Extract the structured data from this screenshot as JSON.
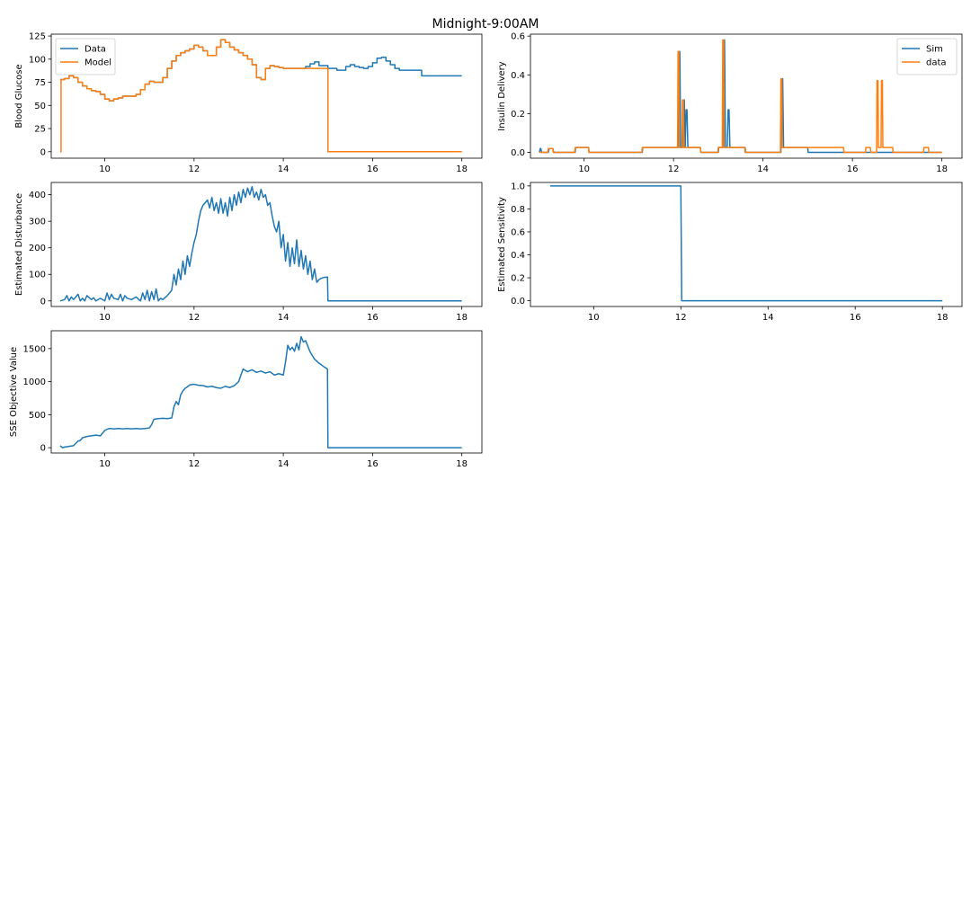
{
  "figure": {
    "title": "Midnight-9:00AM"
  },
  "chart_data": [
    {
      "type": "line",
      "ylabel": "Blood Glucose",
      "xlim": [
        8.8,
        18.45
      ],
      "ylim": [
        -7,
        127
      ],
      "xticks": [
        10,
        12,
        14,
        16,
        18
      ],
      "yticks": [
        0,
        25,
        50,
        75,
        100,
        125
      ],
      "legend": "top-left",
      "series": [
        {
          "name": "Data",
          "color": "#1f77b4",
          "step": true,
          "x": [
            9.0,
            9.1,
            9.2,
            9.3,
            9.4,
            9.5,
            9.6,
            9.7,
            9.8,
            9.9,
            10.0,
            10.1,
            10.2,
            10.3,
            10.4,
            10.5,
            10.6,
            10.7,
            10.8,
            10.9,
            11.0,
            11.1,
            11.2,
            11.3,
            11.4,
            11.5,
            11.6,
            11.7,
            11.8,
            11.9,
            12.0,
            12.1,
            12.2,
            12.3,
            12.4,
            12.5,
            12.6,
            12.7,
            12.8,
            12.9,
            13.0,
            13.1,
            13.2,
            13.3,
            13.4,
            13.5,
            13.6,
            13.7,
            13.8,
            13.9,
            14.0,
            14.1,
            14.2,
            14.3,
            14.4,
            14.5,
            14.6,
            14.7,
            14.8,
            15.0,
            15.2,
            15.4,
            15.5,
            15.6,
            15.7,
            15.8,
            15.9,
            16.0,
            16.1,
            16.2,
            16.3,
            16.4,
            16.5,
            16.6,
            16.7,
            16.8,
            16.9,
            17.0,
            17.1,
            17.2,
            17.3,
            17.5,
            17.7,
            17.75,
            18.0
          ],
          "y": [
            78,
            79,
            82,
            80,
            75,
            71,
            68,
            66,
            65,
            62,
            57,
            55,
            57,
            58,
            60,
            60,
            60,
            62,
            67,
            73,
            76,
            75,
            75,
            80,
            90,
            98,
            104,
            107,
            109,
            111,
            115,
            113,
            109,
            104,
            104,
            113,
            121,
            118,
            113,
            110,
            107,
            104,
            100,
            94,
            80,
            78,
            90,
            93,
            92,
            91,
            90,
            90,
            90,
            90,
            90,
            92,
            95,
            97,
            93,
            90,
            88,
            92,
            94,
            92,
            91,
            90,
            92,
            96,
            101,
            102,
            98,
            94,
            90,
            88,
            88,
            88,
            88,
            88,
            82,
            82,
            82,
            82,
            82,
            82,
            82
          ]
        },
        {
          "name": "Model",
          "color": "#ff7f0e",
          "step": true,
          "x": [
            9.0,
            9.02,
            9.1,
            9.2,
            9.3,
            9.4,
            9.5,
            9.6,
            9.7,
            9.8,
            9.9,
            10.0,
            10.1,
            10.2,
            10.3,
            10.4,
            10.5,
            10.6,
            10.7,
            10.8,
            10.9,
            11.0,
            11.1,
            11.2,
            11.3,
            11.4,
            11.5,
            11.6,
            11.7,
            11.8,
            11.9,
            12.0,
            12.1,
            12.2,
            12.3,
            12.4,
            12.5,
            12.6,
            12.7,
            12.8,
            12.9,
            13.0,
            13.1,
            13.2,
            13.3,
            13.4,
            13.5,
            13.6,
            13.7,
            13.8,
            13.9,
            14.0,
            14.1,
            14.2,
            14.3,
            14.4,
            14.5,
            14.6,
            14.7,
            14.8,
            14.99,
            15.0,
            18.0
          ],
          "y": [
            0,
            78,
            79,
            82,
            80,
            75,
            71,
            68,
            66,
            65,
            62,
            57,
            55,
            57,
            58,
            60,
            60,
            60,
            62,
            67,
            73,
            76,
            75,
            75,
            80,
            90,
            98,
            104,
            107,
            109,
            111,
            115,
            113,
            109,
            104,
            104,
            113,
            121,
            118,
            113,
            110,
            107,
            104,
            100,
            94,
            80,
            78,
            90,
            93,
            92,
            91,
            90,
            90,
            90,
            90,
            90,
            90,
            90,
            90,
            90,
            90,
            0,
            0
          ]
        }
      ]
    },
    {
      "type": "line",
      "ylabel": "Insulin Delivery",
      "xlim": [
        8.8,
        18.45
      ],
      "ylim": [
        -0.03,
        0.61
      ],
      "xticks": [
        10,
        12,
        14,
        16,
        18
      ],
      "yticks": [
        0.0,
        0.2,
        0.4,
        0.6
      ],
      "legend": "top-right",
      "series": [
        {
          "name": "Sim",
          "color": "#1f77b4",
          "x": [
            9.0,
            9.02,
            9.03,
            9.05,
            9.2,
            9.22,
            9.3,
            9.32,
            9.8,
            9.81,
            10.1,
            10.11,
            11.3,
            11.31,
            12.1,
            12.12,
            12.14,
            12.16,
            12.2,
            12.22,
            12.24,
            12.26,
            12.28,
            12.3,
            12.32,
            12.6,
            12.61,
            13.0,
            13.01,
            13.1,
            13.12,
            13.14,
            13.16,
            13.2,
            13.22,
            13.24,
            13.26,
            13.6,
            13.61,
            14.4,
            14.42,
            14.44,
            14.46,
            15.0,
            15.01,
            16.0,
            16.01,
            16.3,
            16.31,
            16.6,
            16.61,
            18.0
          ],
          "y": [
            0,
            0.02,
            0.02,
            0,
            0,
            0.02,
            0.02,
            0,
            0,
            0.025,
            0.025,
            0,
            0,
            0.025,
            0.025,
            0.52,
            0.52,
            0.025,
            0.025,
            0.27,
            0.27,
            0.025,
            0.22,
            0.22,
            0.025,
            0.025,
            0,
            0,
            0.025,
            0.025,
            0.58,
            0.58,
            0.025,
            0.025,
            0.22,
            0.22,
            0.025,
            0.025,
            0,
            0,
            0.38,
            0.38,
            0.025,
            0.025,
            0,
            0,
            0,
            0,
            0,
            0,
            0,
            0
          ]
        },
        {
          "name": "data",
          "color": "#ff7f0e",
          "x": [
            9.0,
            9.19,
            9.2,
            9.3,
            9.31,
            9.79,
            9.8,
            10.1,
            10.11,
            11.29,
            11.3,
            12.09,
            12.1,
            12.12,
            12.13,
            12.19,
            12.2,
            12.22,
            12.23,
            12.6,
            12.61,
            12.99,
            13.0,
            13.09,
            13.1,
            13.12,
            13.13,
            13.59,
            13.6,
            14.39,
            14.4,
            14.42,
            14.43,
            15.8,
            15.81,
            16.29,
            16.3,
            16.4,
            16.41,
            16.54,
            16.55,
            16.57,
            16.58,
            16.64,
            16.65,
            16.67,
            16.68,
            16.9,
            16.91,
            17.59,
            17.6,
            17.7,
            17.71,
            18.0
          ],
          "y": [
            0,
            0,
            0.02,
            0.02,
            0,
            0,
            0.025,
            0.025,
            0,
            0,
            0.025,
            0.025,
            0.52,
            0.52,
            0.025,
            0.025,
            0.27,
            0.27,
            0.025,
            0.025,
            0,
            0,
            0.025,
            0.025,
            0.58,
            0.58,
            0.025,
            0.025,
            0,
            0,
            0.38,
            0.38,
            0.025,
            0.025,
            0,
            0,
            0.025,
            0.025,
            0,
            0,
            0.37,
            0.37,
            0.025,
            0.025,
            0.37,
            0.37,
            0.025,
            0.025,
            0,
            0,
            0.025,
            0.025,
            0,
            0
          ]
        }
      ]
    },
    {
      "type": "line",
      "ylabel": "Estimated Disturbance",
      "xlim": [
        8.8,
        18.45
      ],
      "ylim": [
        -21,
        446
      ],
      "xticks": [
        10,
        12,
        14,
        16,
        18
      ],
      "yticks": [
        0,
        100,
        200,
        300,
        400
      ],
      "series": [
        {
          "name": "",
          "color": "#1f77b4",
          "x": [
            9.0,
            9.1,
            9.15,
            9.2,
            9.25,
            9.3,
            9.4,
            9.45,
            9.5,
            9.55,
            9.6,
            9.7,
            9.75,
            9.8,
            9.9,
            10.0,
            10.05,
            10.1,
            10.15,
            10.2,
            10.3,
            10.35,
            10.4,
            10.45,
            10.5,
            10.6,
            10.7,
            10.8,
            10.85,
            10.9,
            10.95,
            11.0,
            11.05,
            11.1,
            11.15,
            11.2,
            11.25,
            11.3,
            11.4,
            11.5,
            11.55,
            11.6,
            11.65,
            11.7,
            11.75,
            11.8,
            11.85,
            11.9,
            11.95,
            12.0,
            12.05,
            12.1,
            12.15,
            12.2,
            12.25,
            12.3,
            12.35,
            12.4,
            12.45,
            12.5,
            12.55,
            12.6,
            12.65,
            12.7,
            12.75,
            12.8,
            12.85,
            12.9,
            12.95,
            13.0,
            13.05,
            13.1,
            13.15,
            13.2,
            13.25,
            13.3,
            13.35,
            13.4,
            13.45,
            13.5,
            13.55,
            13.6,
            13.65,
            13.7,
            13.75,
            13.8,
            13.85,
            13.9,
            13.95,
            14.0,
            14.05,
            14.1,
            14.15,
            14.2,
            14.25,
            14.3,
            14.35,
            14.4,
            14.45,
            14.5,
            14.55,
            14.6,
            14.65,
            14.7,
            14.75,
            14.8,
            14.85,
            14.9,
            14.99,
            15.0,
            18.0
          ],
          "y": [
            0,
            5,
            20,
            0,
            15,
            5,
            25,
            0,
            10,
            0,
            20,
            5,
            12,
            0,
            10,
            0,
            30,
            5,
            25,
            10,
            5,
            25,
            0,
            20,
            10,
            5,
            15,
            0,
            30,
            5,
            40,
            0,
            35,
            5,
            45,
            0,
            10,
            5,
            20,
            40,
            100,
            60,
            120,
            80,
            150,
            100,
            170,
            130,
            180,
            220,
            250,
            300,
            340,
            360,
            370,
            380,
            350,
            390,
            340,
            370,
            330,
            385,
            330,
            370,
            320,
            390,
            340,
            400,
            360,
            410,
            370,
            420,
            390,
            425,
            400,
            430,
            390,
            410,
            380,
            420,
            390,
            400,
            360,
            370,
            320,
            280,
            260,
            300,
            200,
            250,
            150,
            220,
            130,
            200,
            140,
            230,
            130,
            190,
            120,
            170,
            100,
            150,
            80,
            120,
            70,
            80,
            85,
            88,
            90,
            0,
            0
          ]
        }
      ]
    },
    {
      "type": "line",
      "ylabel": "Estimated Sensitivity",
      "xlim": [
        8.55,
        18.45
      ],
      "ylim": [
        -0.05,
        1.03
      ],
      "xticks": [
        10,
        12,
        14,
        16,
        18
      ],
      "yticks": [
        0.0,
        0.2,
        0.4,
        0.6,
        0.8,
        1.0
      ],
      "series": [
        {
          "name": "",
          "color": "#1f77b4",
          "x": [
            9.0,
            12.0,
            12.02,
            18.0
          ],
          "y": [
            1.0,
            1.0,
            0.0,
            0.0
          ]
        }
      ]
    },
    {
      "type": "line",
      "ylabel": "SSE Objective Value",
      "xlim": [
        8.8,
        18.45
      ],
      "ylim": [
        -80,
        1770
      ],
      "xticks": [
        10,
        12,
        14,
        16,
        18
      ],
      "yticks": [
        0,
        500,
        1000,
        1500
      ],
      "series": [
        {
          "name": "",
          "color": "#1f77b4",
          "x": [
            9.0,
            9.05,
            9.1,
            9.2,
            9.3,
            9.4,
            9.45,
            9.5,
            9.6,
            9.7,
            9.8,
            9.9,
            10.0,
            10.05,
            10.1,
            10.2,
            10.3,
            10.4,
            10.5,
            10.6,
            10.7,
            10.8,
            10.9,
            11.0,
            11.05,
            11.1,
            11.2,
            11.3,
            11.4,
            11.5,
            11.55,
            11.6,
            11.65,
            11.7,
            11.75,
            11.8,
            11.85,
            11.9,
            12.0,
            12.1,
            12.2,
            12.3,
            12.4,
            12.5,
            12.6,
            12.7,
            12.8,
            12.9,
            13.0,
            13.05,
            13.1,
            13.2,
            13.3,
            13.4,
            13.5,
            13.6,
            13.7,
            13.8,
            13.9,
            14.0,
            14.05,
            14.1,
            14.15,
            14.2,
            14.25,
            14.3,
            14.35,
            14.4,
            14.45,
            14.5,
            14.6,
            14.7,
            14.8,
            14.9,
            14.99,
            15.0,
            18.0
          ],
          "y": [
            30,
            0,
            10,
            20,
            30,
            100,
            110,
            150,
            170,
            180,
            190,
            180,
            260,
            280,
            290,
            285,
            290,
            285,
            290,
            285,
            290,
            285,
            290,
            300,
            350,
            430,
            440,
            445,
            440,
            450,
            620,
            700,
            650,
            800,
            860,
            900,
            920,
            950,
            960,
            945,
            940,
            920,
            930,
            910,
            900,
            930,
            910,
            940,
            1000,
            1100,
            1190,
            1150,
            1180,
            1140,
            1160,
            1130,
            1150,
            1100,
            1120,
            1100,
            1300,
            1550,
            1480,
            1520,
            1460,
            1580,
            1480,
            1680,
            1600,
            1620,
            1450,
            1340,
            1280,
            1230,
            1190,
            0,
            0
          ]
        }
      ]
    }
  ]
}
